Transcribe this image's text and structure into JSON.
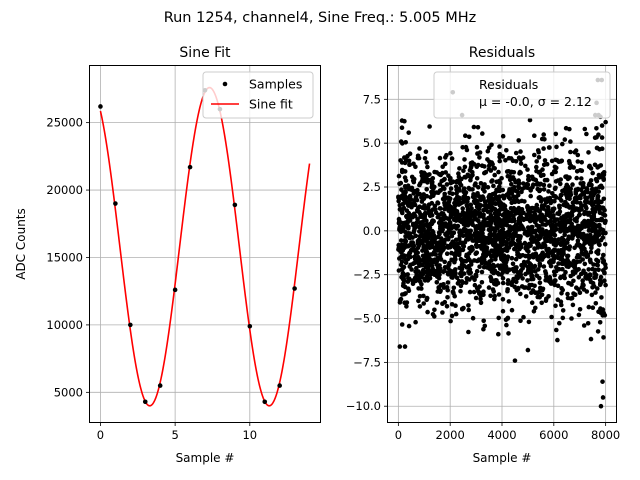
{
  "suptitle": "Run 1254, channel4, Sine Freq.: 5.005 MHz",
  "chart_data": [
    {
      "type": "line",
      "title": "Sine Fit",
      "xlabel": "Sample #",
      "ylabel": "ADC Counts",
      "xlim": [
        -0.7,
        14.7
      ],
      "ylim": [
        2800,
        29200
      ],
      "xticks": [
        0,
        5,
        10
      ],
      "xtick_labels": [
        "0",
        "5",
        "10"
      ],
      "yticks": [
        5000,
        10000,
        15000,
        20000,
        25000
      ],
      "ytick_labels": [
        "5000",
        "10000",
        "15000",
        "20000",
        "25000"
      ],
      "grid": true,
      "legend": {
        "position": "upper right",
        "entries": [
          "Samples",
          "Sine fit"
        ]
      },
      "series": [
        {
          "name": "Samples",
          "kind": "scatter",
          "color": "#000000",
          "x": [
            0,
            1,
            2,
            3,
            4,
            5,
            6,
            7,
            8,
            9,
            10,
            11,
            12,
            13
          ],
          "y": [
            26200,
            19000,
            10000,
            4300,
            5500,
            12600,
            21700,
            27400,
            26000,
            18900,
            9900,
            4300,
            5500,
            12700
          ]
        },
        {
          "name": "Sine fit",
          "kind": "line",
          "color": "#ff0000",
          "model": {
            "amplitude": 11800,
            "offset": 15800,
            "period": 8,
            "phase_sample": 7.3,
            "x_range": [
              0,
              14
            ]
          }
        }
      ]
    },
    {
      "type": "scatter",
      "title": "Residuals",
      "xlabel": "Sample #",
      "ylabel": "",
      "xlim": [
        -400,
        8400
      ],
      "ylim": [
        -10.9,
        9.4
      ],
      "xticks": [
        0,
        2000,
        4000,
        6000,
        8000
      ],
      "xtick_labels": [
        "0",
        "2000",
        "4000",
        "6000",
        "8000"
      ],
      "yticks": [
        -10.0,
        -7.5,
        -5.0,
        -2.5,
        0.0,
        2.5,
        5.0,
        7.5
      ],
      "ytick_labels": [
        "−10.0",
        "−7.5",
        "−5.0",
        "−2.5",
        "0.0",
        "2.5",
        "5.0",
        "7.5"
      ],
      "grid": true,
      "legend": {
        "position": "upper right",
        "entries": [
          "Residuals",
          "μ = -0.0, σ = 2.12"
        ]
      },
      "series": [
        {
          "name": "Residuals",
          "color": "#000000",
          "stats": {
            "mean": -0.0,
            "sigma": 2.12,
            "n_points": 8000,
            "x_range": [
              0,
              7999
            ]
          },
          "notable_points": {
            "x": [
              2100,
              4500,
              5000,
              7700,
              7850,
              7650,
              7820,
              7900,
              7600,
              7800,
              6600,
              7880,
              400,
              8000
            ],
            "y": [
              7.9,
              -7.4,
              -6.8,
              8.6,
              8.6,
              7.3,
              -10.0,
              -9.5,
              6.6,
              6.5,
              5.8,
              -8.6,
              5.6,
              6.2
            ]
          }
        }
      ]
    }
  ]
}
